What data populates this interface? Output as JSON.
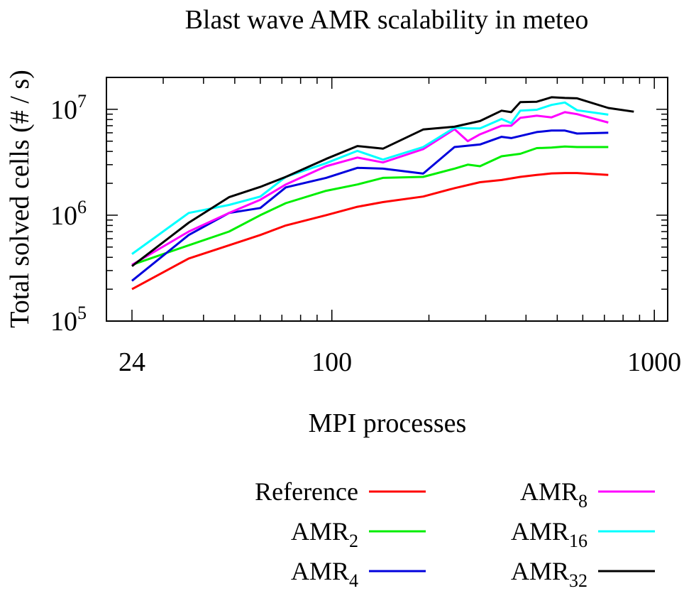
{
  "chart_data": {
    "type": "line",
    "title": "Blast wave AMR scalability in meteo",
    "xlabel": "MPI processes",
    "ylabel": "Total solved cells (# / s)",
    "xscale": "log",
    "yscale": "log",
    "xlim": [
      20,
      1100
    ],
    "ylim": [
      100000,
      20000000
    ],
    "x_ticks": [
      {
        "value": 24,
        "label": "24"
      },
      {
        "value": 100,
        "label": "100"
      },
      {
        "value": 1000,
        "label": "1000"
      }
    ],
    "y_ticks": [
      {
        "value": 100000,
        "base": "10",
        "exp": "5"
      },
      {
        "value": 1000000,
        "base": "10",
        "exp": "6"
      },
      {
        "value": 10000000,
        "base": "10",
        "exp": "7"
      }
    ],
    "grid": false,
    "legend_position": "bottom",
    "series": [
      {
        "name": "Reference",
        "legend_base": "Reference",
        "legend_sub": "",
        "color": "#ff0000",
        "x": [
          24,
          36,
          48,
          60,
          72,
          96,
          120,
          144,
          192,
          240,
          288,
          336,
          384,
          432,
          480,
          528,
          576,
          720
        ],
        "y": [
          200000,
          390000,
          520000,
          650000,
          800000,
          1000000,
          1200000,
          1330000,
          1500000,
          1800000,
          2050000,
          2150000,
          2300000,
          2400000,
          2480000,
          2500000,
          2500000,
          2400000
        ]
      },
      {
        "name": "AMR2",
        "legend_base": "AMR",
        "legend_sub": "2",
        "color": "#00ee00",
        "x": [
          24,
          36,
          48,
          60,
          72,
          96,
          120,
          144,
          192,
          240,
          264,
          288,
          336,
          384,
          432,
          480,
          528,
          576,
          720
        ],
        "y": [
          340000,
          520000,
          700000,
          1000000,
          1300000,
          1700000,
          1950000,
          2250000,
          2300000,
          2750000,
          3000000,
          2900000,
          3600000,
          3800000,
          4300000,
          4350000,
          4450000,
          4400000,
          4400000
        ]
      },
      {
        "name": "AMR4",
        "legend_base": "AMR",
        "legend_sub": "4",
        "color": "#0000dd",
        "x": [
          24,
          36,
          48,
          60,
          72,
          96,
          120,
          144,
          192,
          240,
          288,
          336,
          360,
          384,
          432,
          480,
          528,
          576,
          720
        ],
        "y": [
          240000,
          650000,
          1050000,
          1170000,
          1830000,
          2250000,
          2800000,
          2750000,
          2470000,
          4400000,
          4650000,
          5500000,
          5350000,
          5600000,
          6100000,
          6300000,
          6300000,
          5900000,
          6000000
        ]
      },
      {
        "name": "AMR8",
        "legend_base": "AMR",
        "legend_sub": "8",
        "color": "#ff00ff",
        "x": [
          24,
          36,
          48,
          60,
          72,
          96,
          120,
          144,
          192,
          240,
          264,
          288,
          336,
          360,
          384,
          432,
          480,
          528,
          576,
          720
        ],
        "y": [
          340000,
          700000,
          1050000,
          1400000,
          1950000,
          2900000,
          3500000,
          3150000,
          4200000,
          6500000,
          5000000,
          5800000,
          7000000,
          7000000,
          8300000,
          8700000,
          8400000,
          9400000,
          9000000,
          7500000
        ]
      },
      {
        "name": "AMR16",
        "legend_base": "AMR",
        "legend_sub": "16",
        "color": "#00ffff",
        "x": [
          24,
          36,
          48,
          60,
          72,
          96,
          120,
          144,
          192,
          240,
          264,
          288,
          336,
          360,
          384,
          432,
          480,
          528,
          576,
          720
        ],
        "y": [
          430000,
          1050000,
          1250000,
          1500000,
          2300000,
          3100000,
          4050000,
          3350000,
          4400000,
          6700000,
          6600000,
          6600000,
          8100000,
          7400000,
          9700000,
          9900000,
          11000000,
          11600000,
          9800000,
          8900000
        ]
      },
      {
        "name": "AMR32",
        "legend_base": "AMR",
        "legend_sub": "32",
        "color": "#000000",
        "x": [
          24,
          36,
          48,
          60,
          72,
          96,
          120,
          144,
          192,
          240,
          288,
          336,
          360,
          384,
          432,
          480,
          528,
          576,
          720,
          864
        ],
        "y": [
          330000,
          850000,
          1480000,
          1850000,
          2300000,
          3400000,
          4500000,
          4250000,
          6450000,
          6850000,
          7750000,
          9700000,
          9400000,
          11700000,
          11800000,
          13000000,
          12800000,
          12700000,
          10300000,
          9500000
        ]
      }
    ]
  }
}
